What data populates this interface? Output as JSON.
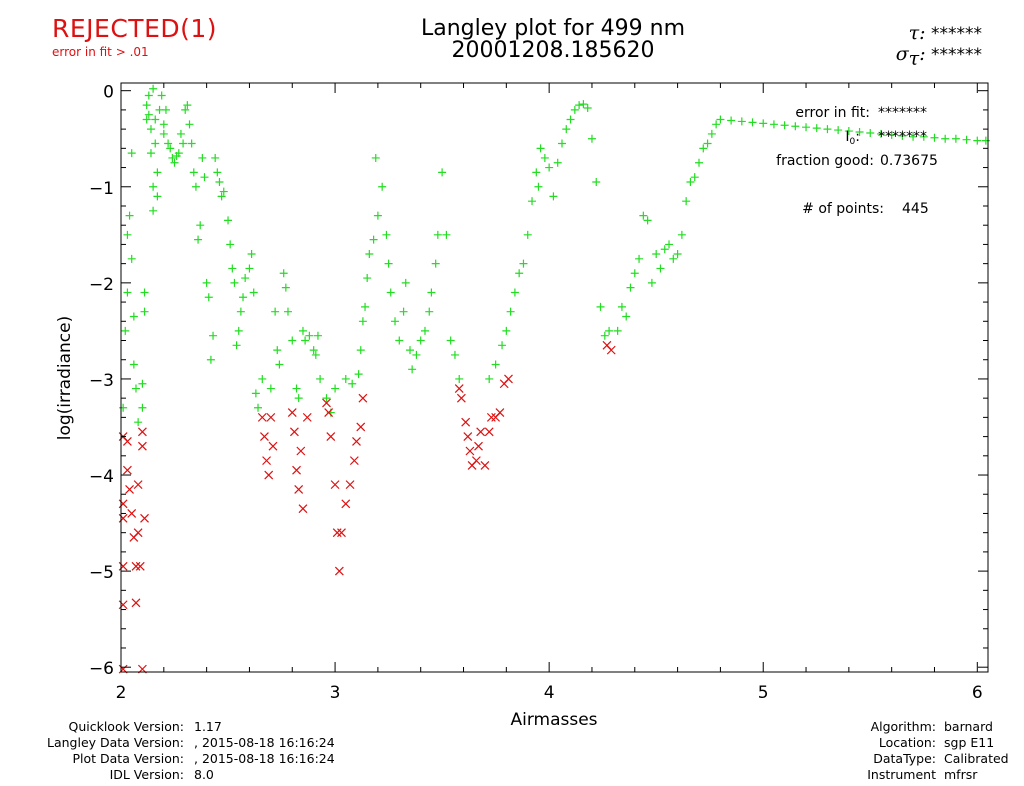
{
  "header": {
    "status": "REJECTED(1)",
    "status_note": "error in fit > .01",
    "title_line1": "Langley plot for 499 nm",
    "title_line2": "20001208.185620",
    "tau_label": "τ:",
    "tau_value": "******",
    "sigma_label": "σ",
    "sigma_sub": "τ",
    "sigma_value": "******"
  },
  "annotations": {
    "error_label": "error in fit:",
    "error_value": "*******",
    "i0_label": "I",
    "i0_sub": "0",
    "i0_value": "*******",
    "fraction_label": "fraction good:",
    "fraction_value": "0.73675",
    "points_label": "# of points:",
    "points_value": "445"
  },
  "footer_left": [
    {
      "key": "Quicklook Version:",
      "value": "1.17"
    },
    {
      "key": "Langley Data Version:",
      "value": ", 2015-08-18 16:16:24"
    },
    {
      "key": "Plot Data Version:",
      "value": ", 2015-08-18 16:16:24"
    },
    {
      "key": "IDL Version:",
      "value": "8.0"
    }
  ],
  "footer_right": [
    {
      "key": "Algorithm:",
      "value": "barnard"
    },
    {
      "key": "Location:",
      "value": "sgp E11"
    },
    {
      "key": "DataType:",
      "value": "Calibrated"
    },
    {
      "key": "Instrument",
      "value": "mfrsr"
    }
  ],
  "colors": {
    "good": "#22dd22",
    "rejected": "#dd1111",
    "axis": "#000000"
  },
  "chart_data": {
    "type": "scatter",
    "xlabel": "Airmasses",
    "ylabel": "log(irradiance)",
    "xlim": [
      2,
      6.05
    ],
    "ylim": [
      -6.05,
      0.08
    ],
    "xticks": [
      2,
      3,
      4,
      5,
      6
    ],
    "yticks": [
      0,
      -1,
      -2,
      -3,
      -4,
      -5,
      -6
    ],
    "xtick_labels": [
      "2",
      "3",
      "4",
      "5",
      "6"
    ],
    "ytick_labels": [
      "0",
      "−1",
      "−2",
      "−3",
      "−4",
      "−5",
      "−6"
    ],
    "grid": false,
    "series": [
      {
        "marker": "plus",
        "color": "#22dd22",
        "points": [
          [
            2.01,
            -3.3
          ],
          [
            2.02,
            -2.5
          ],
          [
            2.03,
            -2.1
          ],
          [
            2.03,
            -1.5
          ],
          [
            2.04,
            -1.3
          ],
          [
            2.05,
            -0.65
          ],
          [
            2.05,
            -1.75
          ],
          [
            2.06,
            -2.35
          ],
          [
            2.06,
            -2.85
          ],
          [
            2.07,
            -3.1
          ],
          [
            2.08,
            -3.45
          ],
          [
            2.1,
            -3.3
          ],
          [
            2.1,
            -3.05
          ],
          [
            2.11,
            -2.3
          ],
          [
            2.11,
            -2.1
          ],
          [
            2.12,
            -0.3
          ],
          [
            2.12,
            -0.15
          ],
          [
            2.13,
            -0.05
          ],
          [
            2.13,
            -0.25
          ],
          [
            2.14,
            -0.4
          ],
          [
            2.14,
            -0.65
          ],
          [
            2.15,
            -1.25
          ],
          [
            2.15,
            -1.0
          ],
          [
            2.15,
            0.02
          ],
          [
            2.16,
            -0.55
          ],
          [
            2.16,
            -0.3
          ],
          [
            2.17,
            -1.1
          ],
          [
            2.17,
            -0.85
          ],
          [
            2.18,
            -0.2
          ],
          [
            2.19,
            -0.05
          ],
          [
            2.2,
            -0.35
          ],
          [
            2.2,
            -0.45
          ],
          [
            2.21,
            -0.2
          ],
          [
            2.22,
            -0.55
          ],
          [
            2.23,
            -0.6
          ],
          [
            2.24,
            -0.7
          ],
          [
            2.25,
            -0.75
          ],
          [
            2.26,
            -0.68
          ],
          [
            2.27,
            -0.65
          ],
          [
            2.28,
            -0.45
          ],
          [
            2.29,
            -0.55
          ],
          [
            2.3,
            -0.2
          ],
          [
            2.31,
            -0.15
          ],
          [
            2.32,
            -0.35
          ],
          [
            2.33,
            -0.55
          ],
          [
            2.34,
            -0.85
          ],
          [
            2.35,
            -1.0
          ],
          [
            2.36,
            -1.55
          ],
          [
            2.37,
            -1.4
          ],
          [
            2.38,
            -0.7
          ],
          [
            2.39,
            -0.9
          ],
          [
            2.4,
            -2.0
          ],
          [
            2.41,
            -2.15
          ],
          [
            2.42,
            -2.8
          ],
          [
            2.43,
            -2.55
          ],
          [
            2.44,
            -0.7
          ],
          [
            2.45,
            -0.85
          ],
          [
            2.46,
            -0.95
          ],
          [
            2.47,
            -1.1
          ],
          [
            2.48,
            -1.05
          ],
          [
            2.5,
            -1.35
          ],
          [
            2.51,
            -1.6
          ],
          [
            2.52,
            -1.85
          ],
          [
            2.53,
            -2.0
          ],
          [
            2.54,
            -2.65
          ],
          [
            2.55,
            -2.5
          ],
          [
            2.56,
            -2.3
          ],
          [
            2.57,
            -2.15
          ],
          [
            2.58,
            -1.95
          ],
          [
            2.6,
            -1.85
          ],
          [
            2.61,
            -1.7
          ],
          [
            2.62,
            -2.1
          ],
          [
            2.63,
            -3.15
          ],
          [
            2.64,
            -3.3
          ],
          [
            2.66,
            -3.0
          ],
          [
            2.7,
            -3.1
          ],
          [
            2.72,
            -2.3
          ],
          [
            2.73,
            -2.7
          ],
          [
            2.74,
            -2.85
          ],
          [
            2.76,
            -1.9
          ],
          [
            2.77,
            -2.05
          ],
          [
            2.78,
            -2.3
          ],
          [
            2.8,
            -2.6
          ],
          [
            2.82,
            -3.1
          ],
          [
            2.83,
            -3.2
          ],
          [
            2.85,
            -2.5
          ],
          [
            2.86,
            -2.6
          ],
          [
            2.88,
            -2.55
          ],
          [
            2.9,
            -2.7
          ],
          [
            2.91,
            -2.75
          ],
          [
            2.92,
            -2.55
          ],
          [
            2.93,
            -3.0
          ],
          [
            2.96,
            -3.2
          ],
          [
            2.98,
            -3.35
          ],
          [
            3.0,
            -3.1
          ],
          [
            3.05,
            -3.0
          ],
          [
            3.08,
            -3.05
          ],
          [
            3.11,
            -2.95
          ],
          [
            3.12,
            -2.7
          ],
          [
            3.13,
            -2.4
          ],
          [
            3.14,
            -2.25
          ],
          [
            3.15,
            -1.95
          ],
          [
            3.16,
            -1.7
          ],
          [
            3.18,
            -1.55
          ],
          [
            3.19,
            -0.7
          ],
          [
            3.2,
            -1.3
          ],
          [
            3.22,
            -1.0
          ],
          [
            3.24,
            -1.5
          ],
          [
            3.25,
            -1.8
          ],
          [
            3.26,
            -2.1
          ],
          [
            3.28,
            -2.4
          ],
          [
            3.3,
            -2.6
          ],
          [
            3.32,
            -2.3
          ],
          [
            3.33,
            -2.0
          ],
          [
            3.35,
            -2.7
          ],
          [
            3.36,
            -2.9
          ],
          [
            3.38,
            -2.75
          ],
          [
            3.4,
            -2.6
          ],
          [
            3.42,
            -2.5
          ],
          [
            3.44,
            -2.3
          ],
          [
            3.45,
            -2.1
          ],
          [
            3.47,
            -1.8
          ],
          [
            3.48,
            -1.5
          ],
          [
            3.5,
            -0.85
          ],
          [
            3.52,
            -1.5
          ],
          [
            3.54,
            -2.6
          ],
          [
            3.56,
            -2.75
          ],
          [
            3.58,
            -3.0
          ],
          [
            3.72,
            -3.0
          ],
          [
            3.75,
            -2.85
          ],
          [
            3.78,
            -2.65
          ],
          [
            3.8,
            -2.5
          ],
          [
            3.82,
            -2.3
          ],
          [
            3.84,
            -2.1
          ],
          [
            3.86,
            -1.9
          ],
          [
            3.88,
            -1.8
          ],
          [
            3.9,
            -1.5
          ],
          [
            3.92,
            -1.15
          ],
          [
            3.94,
            -0.85
          ],
          [
            3.95,
            -1.0
          ],
          [
            3.96,
            -0.6
          ],
          [
            3.98,
            -0.7
          ],
          [
            4.0,
            -0.8
          ],
          [
            4.02,
            -1.1
          ],
          [
            4.04,
            -0.75
          ],
          [
            4.06,
            -0.55
          ],
          [
            4.08,
            -0.4
          ],
          [
            4.1,
            -0.3
          ],
          [
            4.12,
            -0.2
          ],
          [
            4.14,
            -0.15
          ],
          [
            4.16,
            -0.14
          ],
          [
            4.18,
            -0.18
          ],
          [
            4.2,
            -0.5
          ],
          [
            4.22,
            -0.95
          ],
          [
            4.24,
            -2.25
          ],
          [
            4.26,
            -2.55
          ],
          [
            4.28,
            -2.5
          ],
          [
            4.32,
            -2.5
          ],
          [
            4.34,
            -2.25
          ],
          [
            4.36,
            -2.35
          ],
          [
            4.38,
            -2.05
          ],
          [
            4.4,
            -1.9
          ],
          [
            4.42,
            -1.75
          ],
          [
            4.44,
            -1.3
          ],
          [
            4.46,
            -1.35
          ],
          [
            4.48,
            -2.0
          ],
          [
            4.5,
            -1.7
          ],
          [
            4.52,
            -1.85
          ],
          [
            4.54,
            -1.65
          ],
          [
            4.56,
            -1.6
          ],
          [
            4.58,
            -1.75
          ],
          [
            4.6,
            -1.7
          ],
          [
            4.62,
            -1.5
          ],
          [
            4.64,
            -1.15
          ],
          [
            4.66,
            -0.95
          ],
          [
            4.68,
            -0.9
          ],
          [
            4.7,
            -0.75
          ],
          [
            4.72,
            -0.6
          ],
          [
            4.74,
            -0.55
          ],
          [
            4.76,
            -0.45
          ],
          [
            4.78,
            -0.35
          ],
          [
            4.8,
            -0.3
          ],
          [
            4.85,
            -0.31
          ],
          [
            4.9,
            -0.32
          ],
          [
            4.95,
            -0.33
          ],
          [
            5.0,
            -0.34
          ],
          [
            5.05,
            -0.35
          ],
          [
            5.1,
            -0.36
          ],
          [
            5.15,
            -0.37
          ],
          [
            5.2,
            -0.38
          ],
          [
            5.25,
            -0.39
          ],
          [
            5.3,
            -0.4
          ],
          [
            5.35,
            -0.41
          ],
          [
            5.4,
            -0.42
          ],
          [
            5.45,
            -0.43
          ],
          [
            5.5,
            -0.44
          ],
          [
            5.55,
            -0.45
          ],
          [
            5.6,
            -0.46
          ],
          [
            5.65,
            -0.47
          ],
          [
            5.7,
            -0.48
          ],
          [
            5.75,
            -0.48
          ],
          [
            5.8,
            -0.49
          ],
          [
            5.85,
            -0.5
          ],
          [
            5.9,
            -0.5
          ],
          [
            5.95,
            -0.51
          ],
          [
            6.0,
            -0.52
          ],
          [
            6.04,
            -0.52
          ]
        ]
      },
      {
        "marker": "x",
        "color": "#dd1111",
        "points": [
          [
            2.01,
            -3.6
          ],
          [
            2.01,
            -4.3
          ],
          [
            2.01,
            -4.45
          ],
          [
            2.01,
            -4.95
          ],
          [
            2.01,
            -5.35
          ],
          [
            2.01,
            -6.02
          ],
          [
            2.03,
            -3.65
          ],
          [
            2.03,
            -3.95
          ],
          [
            2.04,
            -4.15
          ],
          [
            2.05,
            -4.4
          ],
          [
            2.06,
            -4.65
          ],
          [
            2.07,
            -4.95
          ],
          [
            2.07,
            -5.33
          ],
          [
            2.08,
            -4.1
          ],
          [
            2.08,
            -4.6
          ],
          [
            2.09,
            -4.95
          ],
          [
            2.1,
            -3.55
          ],
          [
            2.1,
            -3.7
          ],
          [
            2.11,
            -4.45
          ],
          [
            2.1,
            -6.02
          ],
          [
            2.66,
            -3.4
          ],
          [
            2.67,
            -3.6
          ],
          [
            2.68,
            -3.85
          ],
          [
            2.69,
            -4.0
          ],
          [
            2.7,
            -3.4
          ],
          [
            2.71,
            -3.7
          ],
          [
            2.8,
            -3.35
          ],
          [
            2.81,
            -3.55
          ],
          [
            2.82,
            -3.95
          ],
          [
            2.83,
            -4.15
          ],
          [
            2.84,
            -3.75
          ],
          [
            2.85,
            -4.35
          ],
          [
            2.87,
            -3.4
          ],
          [
            2.96,
            -3.25
          ],
          [
            2.97,
            -3.35
          ],
          [
            2.98,
            -3.6
          ],
          [
            3.0,
            -4.1
          ],
          [
            3.01,
            -4.6
          ],
          [
            3.02,
            -5.0
          ],
          [
            3.03,
            -4.6
          ],
          [
            3.05,
            -4.3
          ],
          [
            3.07,
            -4.1
          ],
          [
            3.09,
            -3.85
          ],
          [
            3.1,
            -3.65
          ],
          [
            3.12,
            -3.5
          ],
          [
            3.13,
            -3.2
          ],
          [
            3.58,
            -3.1
          ],
          [
            3.59,
            -3.2
          ],
          [
            3.61,
            -3.45
          ],
          [
            3.62,
            -3.6
          ],
          [
            3.63,
            -3.75
          ],
          [
            3.64,
            -3.9
          ],
          [
            3.66,
            -3.85
          ],
          [
            3.67,
            -3.7
          ],
          [
            3.68,
            -3.55
          ],
          [
            3.7,
            -3.9
          ],
          [
            3.72,
            -3.55
          ],
          [
            3.73,
            -3.4
          ],
          [
            3.75,
            -3.4
          ],
          [
            3.77,
            -3.35
          ],
          [
            3.79,
            -3.05
          ],
          [
            3.81,
            -3.0
          ],
          [
            4.27,
            -2.65
          ],
          [
            4.29,
            -2.7
          ]
        ]
      }
    ]
  }
}
